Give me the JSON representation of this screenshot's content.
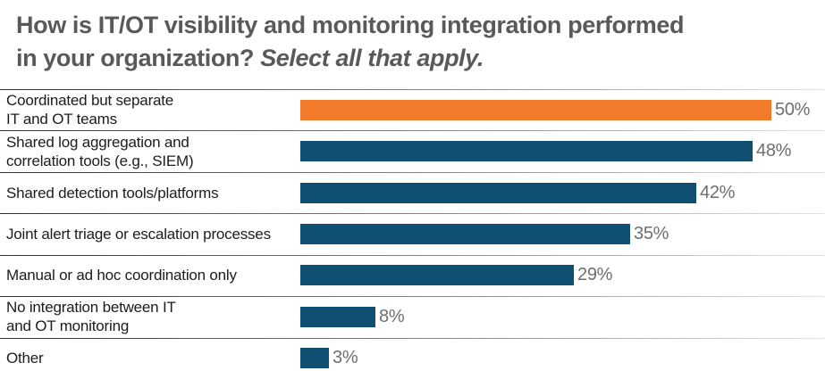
{
  "title": {
    "line1": "How is IT/OT visibility and monitoring integration performed",
    "line2_regular": "in your organization? ",
    "line2_italic": "Select all that apply."
  },
  "colors": {
    "highlight_bar": "#F17A2B",
    "bar": "#0F4F72",
    "title_text": "#58595B",
    "value_text": "#6D6E71",
    "label_text": "#1C1C1E"
  },
  "chart_data": {
    "type": "bar",
    "orientation": "horizontal",
    "title": "How is IT/OT visibility and monitoring integration performed in your organization? Select all that apply.",
    "categories": [
      "Coordinated but separate IT and OT teams",
      "Shared log aggregation and correlation tools (e.g., SIEM)",
      "Shared detection tools/platforms",
      "Joint alert triage or escalation processes",
      "Manual or ad hoc coordination only",
      "No integration between IT and OT monitoring",
      "Other"
    ],
    "values": [
      50,
      48,
      42,
      35,
      29,
      8,
      3
    ],
    "value_suffix": "%",
    "xlabel": "",
    "ylabel": "",
    "xlim": [
      0,
      55
    ],
    "grid": false,
    "legend": "none",
    "value_labels": "at bar end",
    "highlight_index": 0,
    "row_dividers": true
  },
  "rows": [
    {
      "label_lines": [
        "Coordinated but separate",
        "IT and OT teams"
      ],
      "value": 50,
      "value_label": "50%",
      "highlight": true
    },
    {
      "label_lines": [
        "Shared log aggregation and",
        "correlation tools (e.g., SIEM)"
      ],
      "value": 48,
      "value_label": "48%",
      "highlight": false
    },
    {
      "label_lines": [
        "Shared detection tools/platforms"
      ],
      "value": 42,
      "value_label": "42%",
      "highlight": false
    },
    {
      "label_lines": [
        "Joint alert triage or escalation processes"
      ],
      "value": 35,
      "value_label": "35%",
      "highlight": false
    },
    {
      "label_lines": [
        "Manual or ad hoc coordination only"
      ],
      "value": 29,
      "value_label": "29%",
      "highlight": false
    },
    {
      "label_lines": [
        "No integration between IT",
        "and OT monitoring"
      ],
      "value": 8,
      "value_label": "8%",
      "highlight": false
    },
    {
      "label_lines": [
        "Other"
      ],
      "value": 3,
      "value_label": "3%",
      "highlight": false
    }
  ]
}
